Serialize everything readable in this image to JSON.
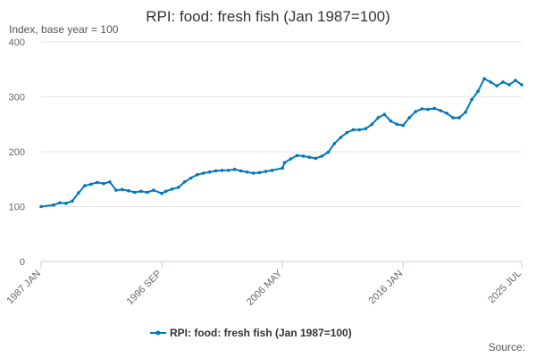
{
  "chart_data": {
    "type": "line",
    "title": "RPI: food: fresh fish (Jan 1987=100)",
    "ylabel": "Index, base year = 100",
    "xlabel": "",
    "ylim": [
      0,
      400
    ],
    "y_ticks": [
      0,
      100,
      200,
      300,
      400
    ],
    "y_tick_labels": [
      "0",
      "100",
      "200",
      "300",
      "400"
    ],
    "x_tick_labels": [
      "1987 JAN",
      "1996 SEP",
      "2006 MAY",
      "2016 JAN",
      "2025 JUL"
    ],
    "x_tick_dates": [
      "1987-01",
      "1996-09",
      "2006-05",
      "2016-01",
      "2025-07"
    ],
    "x_range": [
      "1987-01",
      "2025-07"
    ],
    "grid": "horizontal",
    "legend_placement": "bottom",
    "series": [
      {
        "name": "RPI: food: fresh fish (Jan 1987=100)",
        "color": "#0077bb",
        "x": [
          "1987-01",
          "1988-01",
          "1988-07",
          "1989-01",
          "1989-07",
          "1990-01",
          "1990-07",
          "1991-01",
          "1991-07",
          "1992-01",
          "1992-07",
          "1993-01",
          "1993-07",
          "1994-01",
          "1994-07",
          "1995-01",
          "1995-07",
          "1996-01",
          "1996-09",
          "1997-01",
          "1997-07",
          "1998-01",
          "1998-07",
          "1999-01",
          "1999-07",
          "2000-01",
          "2000-07",
          "2001-01",
          "2001-07",
          "2002-01",
          "2002-07",
          "2003-01",
          "2003-07",
          "2004-01",
          "2004-07",
          "2005-01",
          "2005-07",
          "2006-05",
          "2006-07",
          "2007-01",
          "2007-07",
          "2008-01",
          "2008-07",
          "2009-01",
          "2009-07",
          "2010-01",
          "2010-07",
          "2011-01",
          "2011-07",
          "2012-01",
          "2012-07",
          "2013-01",
          "2013-07",
          "2014-01",
          "2014-07",
          "2015-01",
          "2015-07",
          "2016-01",
          "2016-07",
          "2017-01",
          "2017-07",
          "2018-01",
          "2018-07",
          "2019-01",
          "2019-07",
          "2020-01",
          "2020-07",
          "2021-01",
          "2021-07",
          "2022-01",
          "2022-07",
          "2023-01",
          "2023-07",
          "2024-01",
          "2024-07",
          "2025-01",
          "2025-07"
        ],
        "values": [
          100,
          103,
          107,
          106,
          110,
          125,
          138,
          141,
          144,
          142,
          145,
          130,
          131,
          129,
          126,
          128,
          126,
          130,
          124,
          128,
          132,
          135,
          145,
          152,
          158,
          161,
          163,
          165,
          166,
          166,
          168,
          165,
          163,
          161,
          162,
          164,
          166,
          170,
          180,
          187,
          193,
          192,
          190,
          188,
          192,
          199,
          215,
          226,
          235,
          240,
          240,
          242,
          250,
          262,
          268,
          256,
          250,
          248,
          262,
          273,
          278,
          277,
          279,
          275,
          270,
          262,
          262,
          272,
          295,
          310,
          333,
          327,
          320,
          327,
          322,
          330,
          322
        ]
      }
    ]
  },
  "source": "Source:"
}
